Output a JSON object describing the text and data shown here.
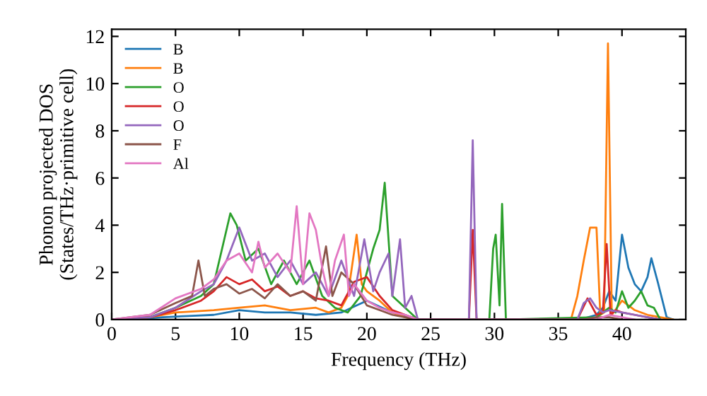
{
  "chart_data": {
    "type": "line",
    "xlabel": "Frequency (THz)",
    "ylabel": "Phonon projected DOS\n(States/THz·primitive cell)",
    "xlim": [
      0,
      45
    ],
    "ylim": [
      0,
      12.3
    ],
    "xticks": [
      0,
      5,
      10,
      15,
      20,
      25,
      30,
      35,
      40
    ],
    "yticks": [
      0,
      2,
      4,
      6,
      8,
      10,
      12
    ],
    "grid": false,
    "legend": "top left",
    "marker": "none",
    "line_style": "solid",
    "series": [
      {
        "name": "B",
        "color": "#1f77b4",
        "x": [
          0,
          2,
          4,
          6,
          8,
          10,
          12,
          14,
          16,
          18,
          20,
          22,
          23.5,
          24,
          36,
          37,
          38,
          38.5,
          39,
          39.5,
          40,
          40.5,
          41,
          41.5,
          42,
          42.3,
          42.8,
          43.5,
          44
        ],
        "values": [
          0,
          0.02,
          0.1,
          0.15,
          0.2,
          0.4,
          0.3,
          0.3,
          0.2,
          0.3,
          0.8,
          0.3,
          0.1,
          0,
          0,
          0.05,
          0.2,
          0.5,
          1.2,
          0.8,
          3.6,
          2.2,
          1.5,
          1.2,
          1.8,
          2.6,
          1.6,
          0.1,
          0
        ]
      },
      {
        "name": "B",
        "color": "#ff7f0e",
        "x": [
          0,
          3,
          5,
          8,
          10,
          12,
          14,
          16,
          17,
          18,
          18.5,
          19.2,
          19.6,
          20,
          21,
          22,
          23,
          24,
          36,
          36.5,
          37,
          37.5,
          38,
          38.3,
          38.6,
          38.9,
          39.2,
          39.6,
          40,
          40.5,
          41,
          42,
          43,
          44
        ],
        "values": [
          0,
          0.1,
          0.3,
          0.4,
          0.5,
          0.6,
          0.4,
          0.5,
          0.3,
          0.5,
          1,
          3.6,
          1.5,
          1.2,
          0.8,
          0.3,
          0.1,
          0,
          0,
          1,
          2.5,
          3.9,
          3.9,
          0.2,
          0.3,
          11.7,
          0.2,
          0.5,
          0.8,
          0.6,
          0.4,
          0.2,
          0.1,
          0
        ]
      },
      {
        "name": "O",
        "color": "#2ca02c",
        "x": [
          0,
          3,
          5,
          7,
          8,
          9.3,
          9.8,
          10.5,
          11.5,
          12.5,
          13.5,
          14.5,
          15.5,
          16.5,
          17.5,
          18.5,
          19.5,
          20,
          20.5,
          21,
          21.4,
          22,
          23,
          24,
          29.6,
          29.9,
          30.1,
          30.4,
          30.6,
          30.9,
          38,
          39,
          39.5,
          40,
          40.5,
          41,
          41.5,
          42,
          42.5,
          43
        ],
        "values": [
          0,
          0.1,
          0.5,
          1,
          1.5,
          4.5,
          4,
          2.5,
          3,
          1.5,
          2.5,
          1.5,
          2.5,
          1,
          0.5,
          0.3,
          1,
          2,
          3,
          3.8,
          5.8,
          1,
          0.5,
          0,
          0,
          3,
          3.6,
          0.6,
          4.9,
          0,
          0.1,
          0.5,
          0.3,
          1.2,
          0.5,
          0.8,
          1.2,
          0.6,
          0.5,
          0
        ]
      },
      {
        "name": "O",
        "color": "#d62728",
        "x": [
          0,
          3,
          5,
          7,
          8,
          9,
          10,
          11,
          12,
          13,
          14,
          15,
          16,
          17,
          18,
          19,
          20,
          21,
          22,
          23,
          24,
          28,
          28.3,
          28.6,
          36.5,
          37.3,
          38,
          38.5,
          38.8,
          39.1,
          39.5,
          40,
          41,
          42,
          43
        ],
        "values": [
          0,
          0.1,
          0.4,
          0.8,
          1.2,
          1.8,
          1.5,
          1.7,
          1.2,
          1.4,
          1,
          1.2,
          0.9,
          0.8,
          0.6,
          1.6,
          1.8,
          1,
          0.4,
          0.2,
          0,
          0,
          3.8,
          0,
          0,
          0.9,
          0.2,
          0.3,
          3.2,
          0.2,
          0.4,
          0.3,
          0.2,
          0.1,
          0
        ]
      },
      {
        "name": "O",
        "color": "#9467bd",
        "x": [
          0,
          3,
          5,
          7,
          8,
          9,
          10,
          11,
          12,
          13,
          14,
          15,
          16,
          17,
          18,
          19,
          19.8,
          20.5,
          21,
          21.7,
          22,
          22.6,
          23,
          23.5,
          24,
          28,
          28.3,
          28.6,
          36.5,
          37,
          37.5,
          38,
          38.5,
          39,
          40,
          41,
          42,
          43
        ],
        "values": [
          0,
          0.1,
          0.5,
          1.2,
          1.5,
          2.5,
          3.9,
          2.5,
          2.8,
          1.8,
          2.5,
          1.5,
          2,
          1,
          2.5,
          1,
          3.4,
          1.2,
          2,
          2.8,
          1,
          3.4,
          0.5,
          1,
          0,
          0,
          7.6,
          0,
          0,
          0.7,
          0.9,
          0.5,
          0.3,
          0.4,
          0.3,
          0.2,
          0.1,
          0
        ]
      },
      {
        "name": "F",
        "color": "#8c564b",
        "x": [
          0,
          3,
          5,
          6.3,
          6.8,
          7.3,
          8,
          9,
          10,
          11,
          12,
          13,
          14,
          15,
          16,
          16.8,
          17.3,
          18,
          19,
          20,
          21,
          22,
          23,
          24,
          37,
          38,
          39,
          40
        ],
        "values": [
          0,
          0.2,
          0.7,
          1,
          2.5,
          1,
          1.3,
          1.5,
          1.1,
          1.3,
          0.9,
          1.5,
          1,
          1.2,
          0.8,
          3.1,
          1,
          2,
          1.5,
          0.6,
          0.4,
          0.2,
          0.1,
          0,
          0,
          0.1,
          0.1,
          0
        ]
      },
      {
        "name": "Al",
        "color": "#e377c2",
        "x": [
          0,
          3,
          5,
          7,
          8,
          9,
          10,
          11,
          11.5,
          12,
          13,
          14,
          14.5,
          15,
          15.5,
          16,
          16.5,
          17,
          17.5,
          18.2,
          18.6,
          19,
          20,
          21,
          22,
          23,
          24,
          38,
          39,
          40,
          41
        ],
        "values": [
          0,
          0.2,
          0.9,
          1.3,
          1.7,
          2.5,
          2.8,
          2,
          3.3,
          2.2,
          2.8,
          2,
          4.8,
          1.5,
          4.5,
          3.8,
          2.2,
          1,
          2.5,
          3.6,
          1,
          1.5,
          0.8,
          0.5,
          0.3,
          0.2,
          0,
          0,
          0.2,
          0.1,
          0
        ]
      }
    ]
  }
}
